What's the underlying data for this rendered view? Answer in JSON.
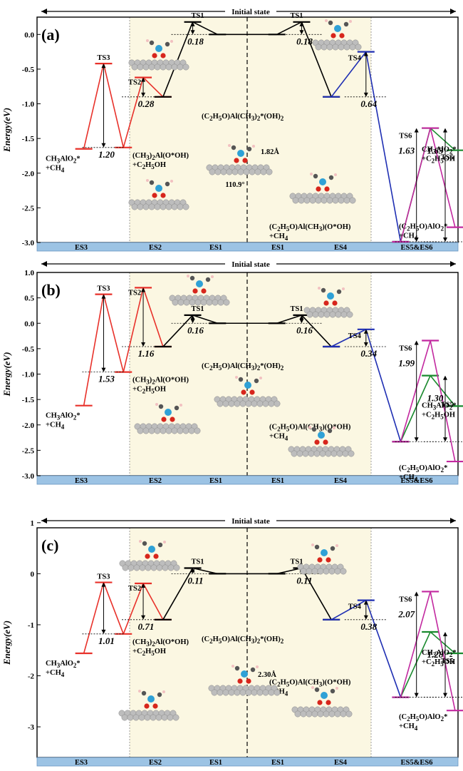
{
  "chart_data": [
    {
      "type": "line",
      "panel_label": "(a)",
      "banner": "Initial state",
      "ylabel": "Energy(eV)",
      "ylim": [
        -3.0,
        0.25
      ],
      "yticks": [
        "-3.0",
        "-2.5",
        "-2.0",
        "-1.5",
        "-1.0",
        "-0.5",
        "0.0"
      ],
      "categories": [
        "ES3",
        "ES2",
        "ES1",
        "ES1",
        "ES4",
        "ES5&ES6"
      ],
      "series": [
        {
          "color": "#e8312a",
          "points": [
            [
              -1.65,
              -1.65
            ],
            [
              -1.45,
              -0.42
            ],
            [
              -1.25,
              -1.63
            ],
            [
              -1.05,
              -0.62
            ],
            [
              -0.85,
              -0.9
            ]
          ]
        },
        {
          "color": "#000000",
          "points": [
            [
              -0.85,
              -0.9
            ],
            [
              -0.55,
              0.18
            ],
            [
              -0.3,
              0.0
            ],
            [
              0.3,
              0.0
            ],
            [
              0.55,
              0.18
            ],
            [
              0.85,
              -0.9
            ]
          ]
        },
        {
          "color": "#1f2fb3",
          "points": [
            [
              0.85,
              -0.9
            ],
            [
              1.2,
              -0.25
            ],
            [
              1.55,
              -2.99
            ]
          ]
        },
        {
          "color": "#1a8a2e",
          "points": [
            [
              1.55,
              -2.99
            ],
            [
              1.85,
              -1.35
            ],
            [
              2.1,
              -1.67
            ]
          ]
        },
        {
          "color": "#c2289f",
          "points": [
            [
              1.55,
              -2.99
            ],
            [
              1.85,
              -1.35
            ],
            [
              2.1,
              -2.78
            ]
          ]
        }
      ],
      "barriers": [
        {
          "x": -1.45,
          "top": -0.42,
          "bottom": -1.63,
          "label": "1.20"
        },
        {
          "x": -1.05,
          "top": -0.62,
          "bottom": -0.9,
          "label": "0.28"
        },
        {
          "x": -0.55,
          "top": 0.18,
          "bottom": 0.0,
          "label": "0.18"
        },
        {
          "x": 0.55,
          "top": 0.18,
          "bottom": 0.0,
          "label": "0.18"
        },
        {
          "x": 1.2,
          "top": -0.25,
          "bottom": -0.9,
          "label": "0.64"
        },
        {
          "x": 1.71,
          "top": -1.35,
          "bottom": -2.99,
          "label": "1.63"
        },
        {
          "x": 2.0,
          "top": -1.35,
          "bottom": -2.99,
          "label": "1.63"
        }
      ],
      "labels": {
        "ts3": "TS3",
        "ts2": "TS2",
        "ts1": "TS1",
        "ts4": "TS4",
        "ts5": "TS5",
        "ts6": "TS6",
        "es3": [
          "CH3AlO2*",
          "+CH4"
        ],
        "es2": [
          "(CH3)2Al(O*OH)",
          "+C2H5OH"
        ],
        "es1": "(C2H5O)Al(CH3)2*(OH)2",
        "es4": [
          "(C2H5O)Al(CH3)(O*OH)",
          "+CH4"
        ],
        "es5": [
          "CH3AlO2*",
          "+C2H5OH"
        ],
        "es6": [
          "(C2H5O)AlO2*",
          "+CH4"
        ],
        "bond": "1.82Å",
        "angle": "110.9°"
      }
    },
    {
      "type": "line",
      "panel_label": "(b)",
      "banner": "Initial state",
      "ylabel": "Energy(eV)",
      "ylim": [
        -3.0,
        1.0
      ],
      "yticks": [
        "-3.0",
        "-2.5",
        "-2.0",
        "-1.5",
        "-1.0",
        "-0.5",
        "0.0",
        "0.5",
        "1.0"
      ],
      "categories": [
        "ES3",
        "ES2",
        "ES1",
        "ES1",
        "ES4",
        "ES5&ES6"
      ],
      "series": [
        {
          "color": "#e8312a",
          "points": [
            [
              -1.65,
              -1.62
            ],
            [
              -1.45,
              0.57
            ],
            [
              -1.25,
              -0.96
            ],
            [
              -1.05,
              0.7
            ],
            [
              -0.85,
              -0.46
            ]
          ]
        },
        {
          "color": "#000000",
          "points": [
            [
              -0.85,
              -0.46
            ],
            [
              -0.55,
              0.16
            ],
            [
              -0.3,
              0.0
            ],
            [
              0.3,
              0.0
            ],
            [
              0.55,
              0.16
            ],
            [
              0.85,
              -0.46
            ]
          ]
        },
        {
          "color": "#1f2fb3",
          "points": [
            [
              0.85,
              -0.46
            ],
            [
              1.2,
              -0.12
            ],
            [
              1.55,
              -2.33
            ]
          ]
        },
        {
          "color": "#1a8a2e",
          "points": [
            [
              1.55,
              -2.33
            ],
            [
              1.85,
              -1.03
            ],
            [
              2.1,
              -1.63
            ]
          ]
        },
        {
          "color": "#c2289f",
          "points": [
            [
              1.55,
              -2.33
            ],
            [
              1.85,
              -0.34
            ],
            [
              2.1,
              -2.72
            ]
          ]
        }
      ],
      "barriers": [
        {
          "x": -1.45,
          "top": 0.57,
          "bottom": -0.96,
          "label": "1.53"
        },
        {
          "x": -1.05,
          "top": 0.7,
          "bottom": -0.46,
          "label": "1.16"
        },
        {
          "x": -0.55,
          "top": 0.16,
          "bottom": 0.0,
          "label": "0.16"
        },
        {
          "x": 0.55,
          "top": 0.16,
          "bottom": 0.0,
          "label": "0.16"
        },
        {
          "x": 1.2,
          "top": -0.12,
          "bottom": -0.46,
          "label": "0.34"
        },
        {
          "x": 1.71,
          "top": -0.34,
          "bottom": -2.33,
          "label": "1.99"
        },
        {
          "x": 2.0,
          "top": -1.03,
          "bottom": -2.33,
          "label": "1.30"
        }
      ],
      "labels": {
        "ts3": "TS3",
        "ts2": "TS2",
        "ts1": "TS1",
        "ts4": "TS4",
        "ts5": "TS5",
        "ts6": "TS6",
        "es3": [
          "CH3AlO2*",
          "+CH4"
        ],
        "es2": [
          "(CH3)2Al(O*OH)",
          "+C2H5OH"
        ],
        "es1": "(C2H5O)Al(CH3)2*(OH)2",
        "es4": [
          "(C2H5O)Al(CH3)(O*OH)",
          "+CH4"
        ],
        "es5": [
          "CH3AlO2*",
          "+C2H5OH"
        ],
        "es6": [
          "(C2H5O)AlO2*",
          "+CH4"
        ]
      }
    },
    {
      "type": "line",
      "panel_label": "(c)",
      "banner": "Initial state",
      "ylabel": "Energy(eV)",
      "ylim": [
        -3.6,
        0.9
      ],
      "yticks": [
        "-3",
        "-2",
        "-1",
        "0",
        "1"
      ],
      "categories": [
        "ES3",
        "ES2",
        "ES1",
        "ES1",
        "ES4",
        "ES5&ES6"
      ],
      "series": [
        {
          "color": "#e8312a",
          "points": [
            [
              -1.65,
              -1.56
            ],
            [
              -1.45,
              -0.17
            ],
            [
              -1.25,
              -1.18
            ],
            [
              -1.05,
              -0.19
            ],
            [
              -0.85,
              -0.9
            ]
          ]
        },
        {
          "color": "#000000",
          "points": [
            [
              -0.85,
              -0.9
            ],
            [
              -0.55,
              0.11
            ],
            [
              -0.3,
              0.0
            ],
            [
              0.3,
              0.0
            ],
            [
              0.55,
              0.11
            ],
            [
              0.85,
              -0.9
            ]
          ]
        },
        {
          "color": "#1f2fb3",
          "points": [
            [
              0.85,
              -0.9
            ],
            [
              1.2,
              -0.52
            ],
            [
              1.55,
              -2.42
            ]
          ]
        },
        {
          "color": "#1a8a2e",
          "points": [
            [
              1.55,
              -2.42
            ],
            [
              1.85,
              -1.14
            ],
            [
              2.1,
              -1.56
            ]
          ]
        },
        {
          "color": "#c2289f",
          "points": [
            [
              1.55,
              -2.42
            ],
            [
              1.85,
              -0.35
            ],
            [
              2.1,
              -2.68
            ]
          ]
        }
      ],
      "barriers": [
        {
          "x": -1.45,
          "top": -0.17,
          "bottom": -1.18,
          "label": "1.01"
        },
        {
          "x": -1.05,
          "top": -0.19,
          "bottom": -0.9,
          "label": "0.71"
        },
        {
          "x": -0.55,
          "top": 0.11,
          "bottom": 0.0,
          "label": "0.11"
        },
        {
          "x": 0.55,
          "top": 0.11,
          "bottom": 0.0,
          "label": "0.11"
        },
        {
          "x": 1.2,
          "top": -0.52,
          "bottom": -0.9,
          "label": "0.38"
        },
        {
          "x": 1.71,
          "top": -0.35,
          "bottom": -2.42,
          "label": "2.07"
        },
        {
          "x": 2.0,
          "top": -1.14,
          "bottom": -2.42,
          "label": "1.28"
        }
      ],
      "labels": {
        "ts3": "TS3",
        "ts2": "TS2",
        "ts1": "TS1",
        "ts4": "TS4",
        "ts5": "TS5",
        "ts6": "TS6",
        "es3": [
          "CH3AlO2*",
          "+CH4"
        ],
        "es2": [
          "(CH3)2Al(O*OH)",
          "+C2H5OH"
        ],
        "es1": "(C2H5O)Al(CH3)2*(OH)2",
        "es4": [
          "(C2H5O)Al(CH3)(O*OH)",
          "+CH4"
        ],
        "es5": [
          "CH3AlO2*",
          "+C2H5OH"
        ],
        "es6": [
          "(C2H5O)AlO2*",
          "+CH4"
        ],
        "bond": "2.30Å"
      }
    }
  ]
}
